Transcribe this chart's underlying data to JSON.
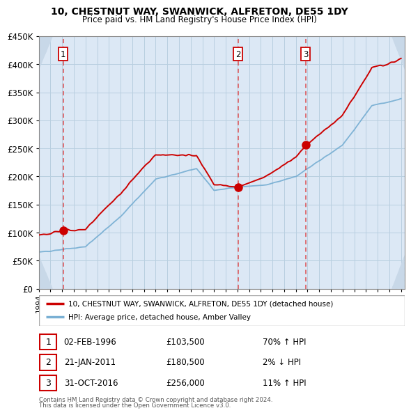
{
  "title": "10, CHESTNUT WAY, SWANWICK, ALFRETON, DE55 1DY",
  "subtitle": "Price paid vs. HM Land Registry's House Price Index (HPI)",
  "ylim": [
    0,
    450000
  ],
  "yticks": [
    0,
    50000,
    100000,
    150000,
    200000,
    250000,
    300000,
    350000,
    400000,
    450000
  ],
  "xlim_min": 1994.0,
  "xlim_max": 2025.3,
  "plot_bg_color": "#dce8f5",
  "grid_color": "#b8cfe0",
  "red_line_color": "#cc0000",
  "blue_line_color": "#7ab0d4",
  "marker_color": "#cc0000",
  "dashed_line_color": "#dd3333",
  "sale_years": [
    1996.09,
    2011.055,
    2016.84
  ],
  "sale_prices": [
    103500,
    180500,
    256000
  ],
  "sale_nums": [
    1,
    2,
    3
  ],
  "legend_red_label": "10, CHESTNUT WAY, SWANWICK, ALFRETON, DE55 1DY (detached house)",
  "legend_blue_label": "HPI: Average price, detached house, Amber Valley",
  "footer_line1": "Contains HM Land Registry data © Crown copyright and database right 2024.",
  "footer_line2": "This data is licensed under the Open Government Licence v3.0.",
  "table_rows": [
    {
      "num": "1",
      "date": "02-FEB-1996",
      "price": "£103,500",
      "pct": "70% ↑ HPI"
    },
    {
      "num": "2",
      "date": "21-JAN-2011",
      "price": "£180,500",
      "pct": "2% ↓ HPI"
    },
    {
      "num": "3",
      "date": "31-OCT-2016",
      "price": "£256,000",
      "pct": "11% ↑ HPI"
    }
  ]
}
